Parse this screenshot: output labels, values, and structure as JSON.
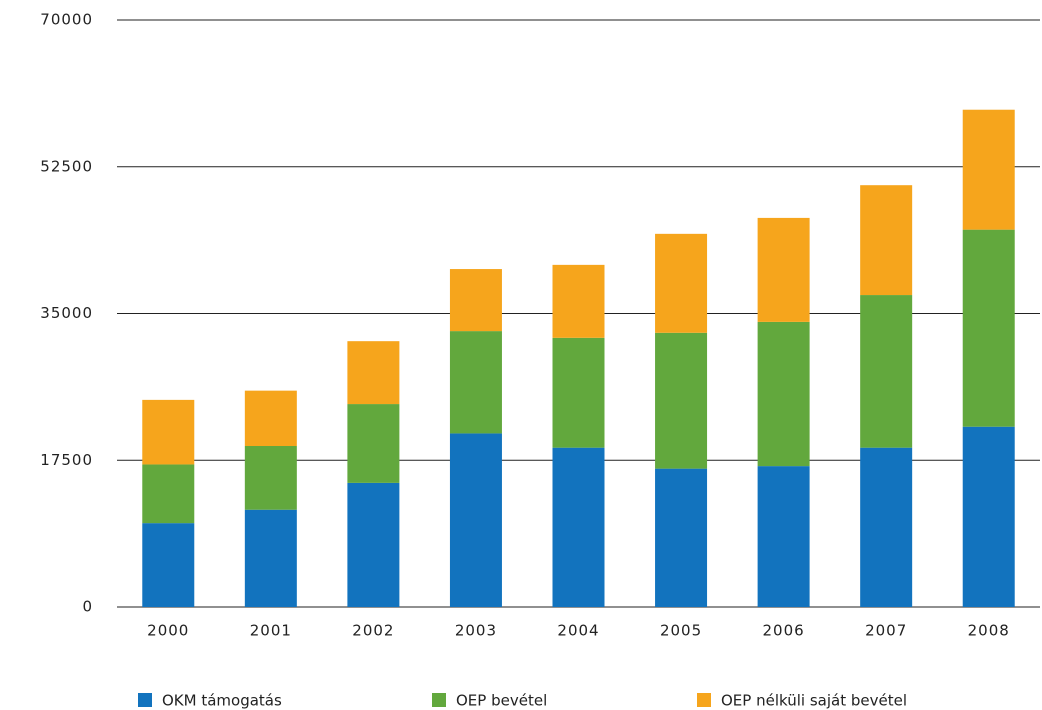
{
  "chart_data": {
    "type": "stacked_bar",
    "categories": [
      "2000",
      "2001",
      "2002",
      "2003",
      "2004",
      "2005",
      "2006",
      "2007",
      "2008"
    ],
    "series": [
      {
        "name": "OKM támogatás",
        "color": "#1273be",
        "values": [
          10000,
          11600,
          14800,
          20700,
          19000,
          16500,
          16800,
          19000,
          21500
        ]
      },
      {
        "name": "OEP bevétel",
        "color": "#62a83d",
        "values": [
          7000,
          7600,
          9400,
          12200,
          13100,
          16200,
          17200,
          18200,
          23500
        ]
      },
      {
        "name": "OEP nélküli saját bevétel",
        "color": "#f6a51c",
        "values": [
          7700,
          6600,
          7500,
          7400,
          8700,
          11800,
          12400,
          13100,
          14300
        ]
      }
    ],
    "ylim": [
      0,
      70000
    ],
    "yticks": [
      0,
      17500,
      35000,
      52500,
      70000
    ],
    "grid": true,
    "legend": "bottom"
  }
}
